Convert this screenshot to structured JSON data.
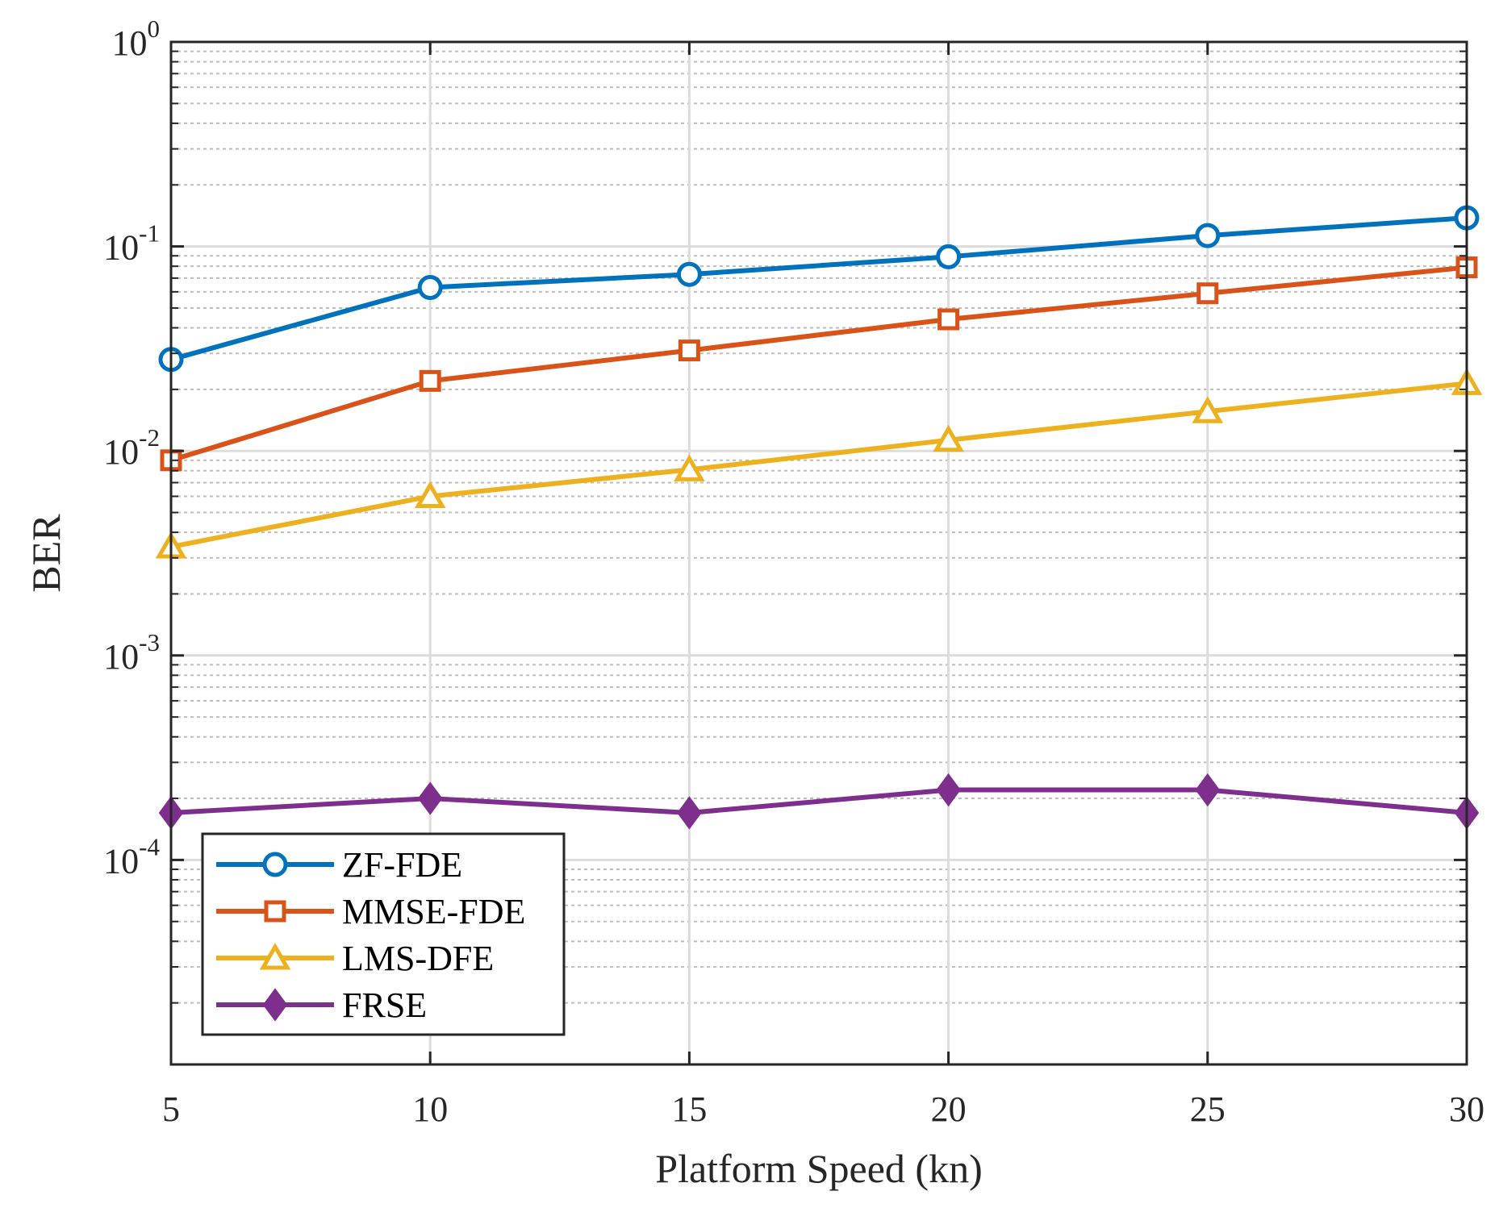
{
  "chart_data": {
    "type": "line",
    "title": "",
    "xlabel": "Platform Speed (kn)",
    "ylabel": "BER",
    "x": [
      5,
      10,
      15,
      20,
      25,
      30
    ],
    "xlim": [
      5,
      30
    ],
    "xticks": [
      "5",
      "10",
      "15",
      "20",
      "25",
      "30"
    ],
    "yscale": "log",
    "ylim": [
      1e-05,
      1
    ],
    "yticks": [
      {
        "base": "10",
        "exp": "0"
      },
      {
        "base": "10",
        "exp": "-1"
      },
      {
        "base": "10",
        "exp": "-2"
      },
      {
        "base": "10",
        "exp": "-3"
      },
      {
        "base": "10",
        "exp": "-4"
      }
    ],
    "grid": true,
    "legend_position": "bottom-left",
    "series": [
      {
        "name": "ZF-FDE",
        "marker": "circle",
        "color": "#0072BD",
        "values": [
          0.028,
          0.063,
          0.073,
          0.089,
          0.113,
          0.138
        ]
      },
      {
        "name": "MMSE-FDE",
        "marker": "square",
        "color": "#D95319",
        "values": [
          0.009,
          0.022,
          0.031,
          0.044,
          0.059,
          0.079
        ]
      },
      {
        "name": "LMS-DFE",
        "marker": "triangle",
        "color": "#EDB120",
        "values": [
          0.0034,
          0.006,
          0.0081,
          0.0113,
          0.0156,
          0.0214
        ]
      },
      {
        "name": "FRSE",
        "marker": "diamond",
        "color": "#7E2F8E",
        "values": [
          0.00017,
          0.0002,
          0.00017,
          0.00022,
          0.00022,
          0.00017
        ]
      }
    ]
  }
}
